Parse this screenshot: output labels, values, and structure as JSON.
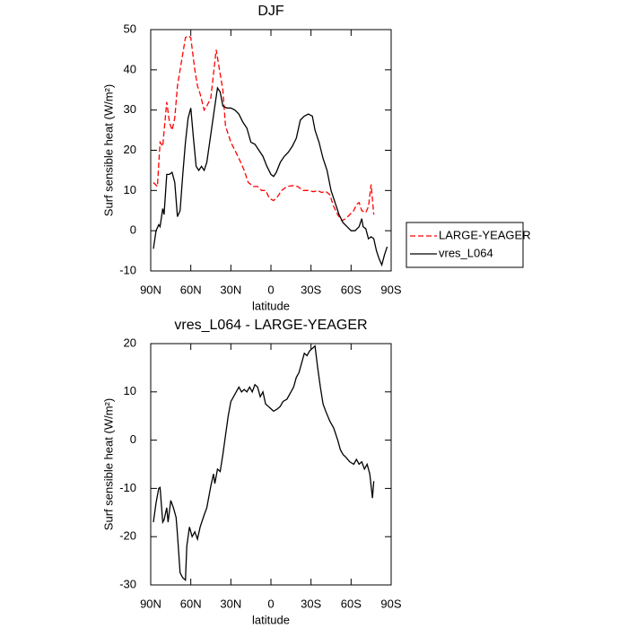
{
  "chart_data": [
    {
      "type": "line",
      "title": "DJF",
      "xlabel": "latitude",
      "ylabel": "Surf sensible heat (W/m²)",
      "xlim": [
        90,
        -90
      ],
      "xticks": [
        {
          "value": 90,
          "label": "90N"
        },
        {
          "value": 60,
          "label": "60N"
        },
        {
          "value": 30,
          "label": "30N"
        },
        0,
        {
          "value": -30,
          "label": "30S"
        },
        {
          "value": -60,
          "label": "60S"
        },
        {
          "value": -90,
          "label": "90S"
        }
      ],
      "ylim": [
        -10,
        50
      ],
      "yticks": [
        -10,
        0,
        10,
        20,
        30,
        40,
        50
      ],
      "legend": "right",
      "series": [
        {
          "name": "LARGE-YEAGER",
          "color": "#ff0000",
          "dash": "dashed",
          "x": [
            88,
            85,
            83,
            81,
            78,
            76,
            74,
            72,
            70,
            67,
            64,
            62,
            60,
            57,
            55,
            53,
            50,
            48,
            45,
            43,
            41,
            39,
            36,
            34,
            30,
            27,
            24,
            20,
            17,
            13,
            10,
            7,
            4,
            1,
            -2,
            -5,
            -8,
            -12,
            -16,
            -20,
            -24,
            -28,
            -32,
            -35,
            -38,
            -41,
            -44,
            -47,
            -50,
            -53,
            -56,
            -59,
            -62,
            -64,
            -66,
            -68,
            -71,
            -73,
            -75,
            -77
          ],
          "values": [
            12,
            11,
            22,
            21,
            32,
            27,
            25,
            28,
            36,
            42,
            48,
            48.5,
            48,
            40,
            36,
            34,
            30,
            31,
            33,
            39,
            45,
            41,
            35,
            26,
            22,
            20,
            18,
            15,
            12,
            11,
            11,
            10,
            10,
            8,
            7.5,
            8.5,
            10,
            11,
            11.2,
            11,
            10,
            10,
            9.7,
            10,
            9.5,
            9.8,
            9,
            6,
            4,
            2.5,
            3,
            4,
            5,
            6.5,
            7,
            5,
            4.5,
            6,
            11.5,
            4
          ]
        },
        {
          "name": "vres_L064",
          "color": "#000000",
          "dash": "solid",
          "x": [
            88,
            86,
            84,
            83,
            81,
            80,
            78,
            76,
            74,
            72,
            70,
            68,
            66,
            64,
            62,
            60,
            58,
            56,
            54,
            52,
            50,
            48,
            45,
            42,
            40,
            38,
            36,
            33,
            30,
            27,
            24,
            21,
            18,
            15,
            12,
            9,
            6,
            3,
            0,
            -2,
            -4,
            -7,
            -10,
            -13,
            -16,
            -19,
            -22,
            -25,
            -28,
            -31,
            -33,
            -36,
            -39,
            -42,
            -45,
            -48,
            -51,
            -54,
            -57,
            -60,
            -63,
            -66,
            -68,
            -69,
            -71,
            -73,
            -75,
            -77,
            -79,
            -81,
            -83,
            -85,
            -87
          ],
          "values": [
            -4.5,
            0,
            1.5,
            1,
            5.5,
            4,
            14,
            14,
            14.5,
            12,
            3.5,
            5,
            14,
            22,
            28,
            30.5,
            23,
            16,
            15,
            16,
            15,
            17,
            24,
            31,
            35.5,
            34.5,
            31,
            30.5,
            30.5,
            30,
            29,
            27,
            25.5,
            22,
            21.5,
            20,
            18.5,
            16,
            14,
            13.5,
            14.5,
            17,
            18.5,
            19.5,
            21,
            23,
            27.5,
            28.5,
            29,
            28.5,
            25,
            22,
            18,
            15,
            10,
            7,
            4,
            2,
            1,
            0,
            0,
            1,
            3,
            1,
            0.5,
            -2,
            -1.5,
            -2,
            -5,
            -7,
            -8.5,
            -6,
            -4
          ]
        }
      ]
    },
    {
      "type": "line",
      "title": "vres_L064 - LARGE-YEAGER",
      "xlabel": "latitude",
      "ylabel": "Surf sensible heat (W/m²)",
      "xlim": [
        90,
        -90
      ],
      "xticks": [
        {
          "value": 90,
          "label": "90N"
        },
        {
          "value": 60,
          "label": "60N"
        },
        {
          "value": 30,
          "label": "30N"
        },
        0,
        {
          "value": -30,
          "label": "30S"
        },
        {
          "value": -60,
          "label": "60S"
        },
        {
          "value": -90,
          "label": "90S"
        }
      ],
      "ylim": [
        -30,
        20
      ],
      "yticks": [
        -30,
        -20,
        -10,
        0,
        10,
        20
      ],
      "series": [
        {
          "color": "#000000",
          "dash": "solid",
          "x": [
            88,
            86,
            84,
            83,
            81,
            80,
            78,
            77,
            75,
            73,
            71,
            70,
            68,
            66,
            64,
            63,
            61,
            59,
            57,
            55,
            53,
            50,
            48,
            46,
            45,
            43,
            42,
            40,
            38,
            36,
            34,
            32,
            30,
            28,
            26,
            24,
            22,
            20,
            18,
            16,
            14,
            12,
            10,
            8,
            6,
            4,
            2,
            0,
            -2,
            -5,
            -7,
            -9,
            -12,
            -15,
            -17,
            -19,
            -21,
            -23,
            -25,
            -27,
            -29,
            -31,
            -33,
            -35,
            -37,
            -39,
            -41,
            -44,
            -47,
            -50,
            -52,
            -54,
            -56,
            -59,
            -62,
            -64,
            -66,
            -68,
            -70,
            -72,
            -74,
            -76,
            -77
          ],
          "values": [
            -17,
            -13,
            -10,
            -9.8,
            -17,
            -16.5,
            -14,
            -17,
            -12.5,
            -14,
            -16,
            -19.5,
            -27.5,
            -28.5,
            -29,
            -22,
            -18,
            -20,
            -19,
            -20.5,
            -18,
            -15.5,
            -14,
            -11,
            -9.5,
            -7,
            -9,
            -6,
            -6.5,
            -3,
            1,
            5,
            8,
            9,
            10,
            11,
            10,
            10.5,
            10,
            11,
            10,
            11.5,
            11,
            9,
            10,
            7.5,
            7,
            6.5,
            6,
            6.5,
            7,
            8,
            8.5,
            10,
            11,
            13,
            14,
            16,
            18,
            17.5,
            18.5,
            19,
            19.5,
            15,
            11,
            7.5,
            6,
            4,
            2.5,
            0,
            -2,
            -3,
            -3.5,
            -4.5,
            -5,
            -4,
            -5,
            -4.5,
            -6,
            -5,
            -7,
            -12,
            -8.5
          ]
        }
      ]
    }
  ]
}
